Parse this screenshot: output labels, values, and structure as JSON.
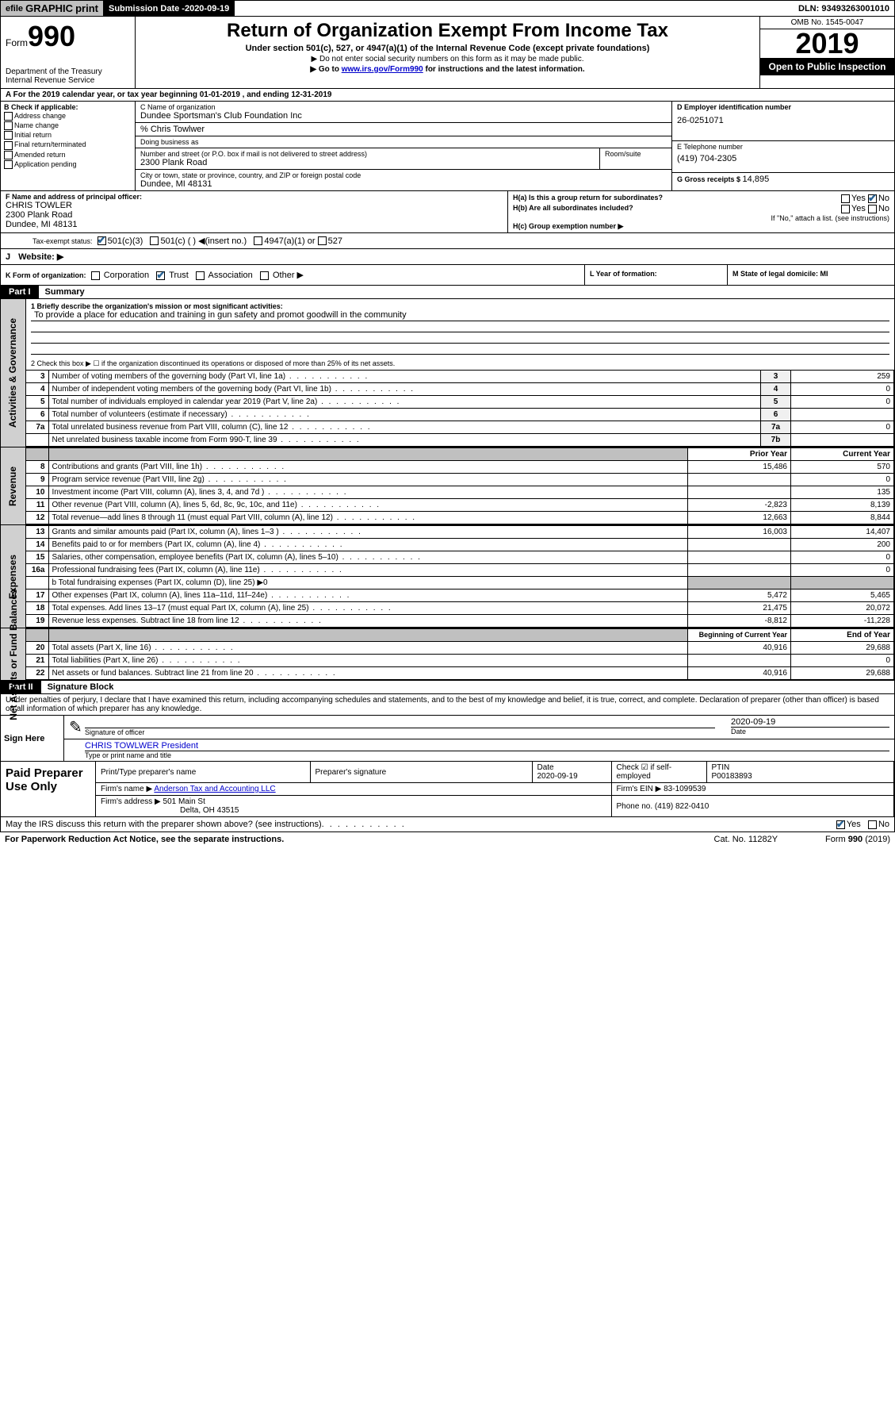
{
  "topbar": {
    "efile_prefix": "efile",
    "efile_graphic": "GRAPHIC",
    "efile_print": "print",
    "subm_label": "Submission Date - ",
    "subm_date": "2020-09-19",
    "dln": "DLN: 93493263001010"
  },
  "header": {
    "form_word": "Form",
    "form_num": "990",
    "dept1": "Department of the Treasury",
    "dept2": "Internal Revenue Service",
    "title": "Return of Organization Exempt From Income Tax",
    "subtitle": "Under section 501(c), 527, or 4947(a)(1) of the Internal Revenue Code (except private foundations)",
    "arrow1": "▶ Do not enter social security numbers on this form as it may be made public.",
    "arrow2_pre": "▶ Go to ",
    "arrow2_link": "www.irs.gov/Form990",
    "arrow2_post": " for instructions and the latest information.",
    "omb": "OMB No. 1545-0047",
    "year": "2019",
    "open_public": "Open to Public Inspection"
  },
  "row_a": "A  For the 2019 calendar year, or tax year beginning 01-01-2019   , and ending 12-31-2019",
  "col_b": {
    "header": "B Check if applicable:",
    "items": [
      "Address change",
      "Name change",
      "Initial return",
      "Final return/terminated",
      "Amended return",
      "Application pending"
    ]
  },
  "col_c": {
    "name_label": "C Name of organization",
    "name": "Dundee Sportsman's Club Foundation Inc",
    "care_label": "% Chris Towlwer",
    "dba_label": "Doing business as",
    "addr_label": "Number and street (or P.O. box if mail is not delivered to street address)",
    "room_label": "Room/suite",
    "addr": "2300 Plank Road",
    "city_label": "City or town, state or province, country, and ZIP or foreign postal code",
    "city": "Dundee, MI  48131"
  },
  "col_d": {
    "ein_label": "D Employer identification number",
    "ein": "26-0251071",
    "tel_label": "E Telephone number",
    "tel": "(419) 704-2305",
    "gross_label": "G Gross receipts $ ",
    "gross": "14,895"
  },
  "col_f": {
    "label": "F  Name and address of principal officer:",
    "name": "CHRIS TOWLER",
    "addr1": "2300 Plank Road",
    "addr2": "Dundee, MI  48131"
  },
  "col_h": {
    "ha_label": "H(a)  Is this a group return for subordinates?",
    "hb_label": "H(b)  Are all subordinates included?",
    "hb_note": "If \"No,\" attach a list. (see instructions)",
    "hc_label": "H(c)  Group exemption number ▶",
    "yes": "Yes",
    "no": "No"
  },
  "row_i": {
    "label": "Tax-exempt status:",
    "opts": [
      "501(c)(3)",
      "501(c) (  ) ◀(insert no.)",
      "4947(a)(1) or",
      "527"
    ]
  },
  "row_j": {
    "label": "J",
    "text": "Website: ▶"
  },
  "row_k": {
    "label": "K Form of organization:",
    "opts": [
      "Corporation",
      "Trust",
      "Association",
      "Other ▶"
    ]
  },
  "col_l": "L Year of formation:",
  "col_m": "M State of legal domicile: MI",
  "part1": {
    "header": "Part I",
    "title": "Summary",
    "sidebar1": "Activities & Governance",
    "sidebar2": "Revenue",
    "sidebar3": "Expenses",
    "sidebar4": "Net Assets or Fund Balances",
    "q1_label": "1  Briefly describe the organization's mission or most significant activities:",
    "q1_text": "To provide a place for education and training in gun safety and promot goodwill in the community",
    "q2": "2   Check this box ▶ ☐  if the organization discontinued its operations or disposed of more than 25% of its net assets.",
    "rows_gov": [
      {
        "n": "3",
        "d": "Number of voting members of the governing body (Part VI, line 1a)",
        "ln": "3",
        "v": "259"
      },
      {
        "n": "4",
        "d": "Number of independent voting members of the governing body (Part VI, line 1b)",
        "ln": "4",
        "v": "0"
      },
      {
        "n": "5",
        "d": "Total number of individuals employed in calendar year 2019 (Part V, line 2a)",
        "ln": "5",
        "v": "0"
      },
      {
        "n": "6",
        "d": "Total number of volunteers (estimate if necessary)",
        "ln": "6",
        "v": ""
      },
      {
        "n": "7a",
        "d": "Total unrelated business revenue from Part VIII, column (C), line 12",
        "ln": "7a",
        "v": "0"
      },
      {
        "n": "",
        "d": "Net unrelated business taxable income from Form 990-T, line 39",
        "ln": "7b",
        "v": ""
      }
    ],
    "col_prior": "Prior Year",
    "col_current": "Current Year",
    "rows_rev": [
      {
        "n": "8",
        "d": "Contributions and grants (Part VIII, line 1h)",
        "p": "15,486",
        "c": "570"
      },
      {
        "n": "9",
        "d": "Program service revenue (Part VIII, line 2g)",
        "p": "",
        "c": "0"
      },
      {
        "n": "10",
        "d": "Investment income (Part VIII, column (A), lines 3, 4, and 7d )",
        "p": "",
        "c": "135"
      },
      {
        "n": "11",
        "d": "Other revenue (Part VIII, column (A), lines 5, 6d, 8c, 9c, 10c, and 11e)",
        "p": "-2,823",
        "c": "8,139"
      },
      {
        "n": "12",
        "d": "Total revenue—add lines 8 through 11 (must equal Part VIII, column (A), line 12)",
        "p": "12,663",
        "c": "8,844"
      }
    ],
    "rows_exp": [
      {
        "n": "13",
        "d": "Grants and similar amounts paid (Part IX, column (A), lines 1–3 )",
        "p": "16,003",
        "c": "14,407"
      },
      {
        "n": "14",
        "d": "Benefits paid to or for members (Part IX, column (A), line 4)",
        "p": "",
        "c": "200"
      },
      {
        "n": "15",
        "d": "Salaries, other compensation, employee benefits (Part IX, column (A), lines 5–10)",
        "p": "",
        "c": "0"
      },
      {
        "n": "16a",
        "d": "Professional fundraising fees (Part IX, column (A), line 11e)",
        "p": "",
        "c": "0"
      }
    ],
    "row_16b": "b   Total fundraising expenses (Part IX, column (D), line 25) ▶0",
    "rows_exp2": [
      {
        "n": "17",
        "d": "Other expenses (Part IX, column (A), lines 11a–11d, 11f–24e)",
        "p": "5,472",
        "c": "5,465"
      },
      {
        "n": "18",
        "d": "Total expenses. Add lines 13–17 (must equal Part IX, column (A), line 25)",
        "p": "21,475",
        "c": "20,072"
      },
      {
        "n": "19",
        "d": "Revenue less expenses. Subtract line 18 from line 12",
        "p": "-8,812",
        "c": "-11,228"
      }
    ],
    "col_begin": "Beginning of Current Year",
    "col_end": "End of Year",
    "rows_net": [
      {
        "n": "20",
        "d": "Total assets (Part X, line 16)",
        "p": "40,916",
        "c": "29,688"
      },
      {
        "n": "21",
        "d": "Total liabilities (Part X, line 26)",
        "p": "",
        "c": "0"
      },
      {
        "n": "22",
        "d": "Net assets or fund balances. Subtract line 21 from line 20",
        "p": "40,916",
        "c": "29,688"
      }
    ]
  },
  "part2": {
    "header": "Part II",
    "title": "Signature Block",
    "perjury": "Under penalties of perjury, I declare that I have examined this return, including accompanying schedules and statements, and to the best of my knowledge and belief, it is true, correct, and complete. Declaration of preparer (other than officer) is based on all information of which preparer has any knowledge."
  },
  "sign": {
    "label": "Sign Here",
    "sig_officer": "Signature of officer",
    "date": "2020-09-19",
    "date_label": "Date",
    "name": "CHRIS TOWLWER  President",
    "name_label": "Type or print name and title"
  },
  "paid": {
    "label": "Paid Preparer Use Only",
    "h_name": "Print/Type preparer's name",
    "h_sig": "Preparer's signature",
    "h_date": "Date",
    "date": "2020-09-19",
    "h_check": "Check ☑ if self-employed",
    "h_ptin": "PTIN",
    "ptin": "P00183893",
    "firm_name_label": "Firm's name      ▶ ",
    "firm_name": "Anderson Tax and Accounting LLC",
    "firm_ein_label": "Firm's EIN ▶ ",
    "firm_ein": "83-1099539",
    "firm_addr_label": "Firm's address  ▶ ",
    "firm_addr1": "501 Main St",
    "firm_addr2": "Delta, OH  43515",
    "phone_label": "Phone no. ",
    "phone": "(419) 822-0410"
  },
  "discuss": {
    "text": "May the IRS discuss this return with the preparer shown above? (see instructions)",
    "yes": "Yes",
    "no": "No"
  },
  "footer": {
    "left": "For Paperwork Reduction Act Notice, see the separate instructions.",
    "mid": "Cat. No. 11282Y",
    "right_pre": "Form ",
    "right_num": "990",
    "right_post": " (2019)"
  }
}
